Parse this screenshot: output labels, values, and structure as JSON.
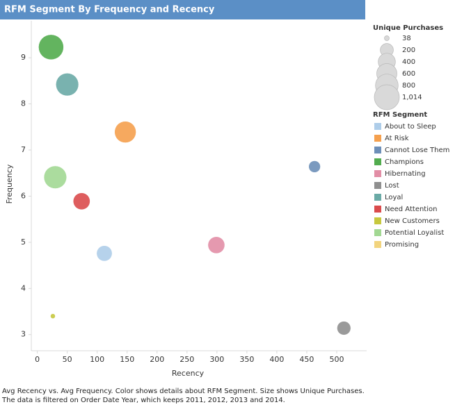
{
  "chart_data": {
    "type": "scatter",
    "title": "RFM Segment By Frequency and Recency",
    "x_label": "Recency",
    "y_label": "Frequency",
    "xlim": [
      -10,
      550
    ],
    "xticks": [
      0,
      50,
      100,
      150,
      200,
      250,
      300,
      350,
      400,
      450,
      500
    ],
    "ylim": [
      2.65,
      9.8
    ],
    "yticks": [
      3,
      4,
      5,
      6,
      7,
      8,
      9
    ],
    "size_legend_title": "Unique Purchases",
    "size_legend": [
      38,
      200,
      400,
      600,
      800,
      {
        "value": 1014,
        "label": "1,014"
      }
    ],
    "color_legend_title": "RFM Segment",
    "series": [
      {
        "name": "About to Sleep",
        "color": "#aecde9",
        "x": [
          112
        ],
        "y": [
          4.76
        ],
        "size": [
          310
        ]
      },
      {
        "name": "At Risk",
        "color": "#f5a04e",
        "x": [
          147
        ],
        "y": [
          7.39
        ],
        "size": [
          700
        ]
      },
      {
        "name": "Cannot Lose Them",
        "color": "#6d8fb8",
        "x": [
          463
        ],
        "y": [
          6.64
        ],
        "size": [
          150
        ]
      },
      {
        "name": "Champions",
        "color": "#52ac4e",
        "x": [
          23
        ],
        "y": [
          9.23
        ],
        "size": [
          1014
        ]
      },
      {
        "name": "Hibernating",
        "color": "#e28ea6",
        "x": [
          299
        ],
        "y": [
          4.94
        ],
        "size": [
          380
        ]
      },
      {
        "name": "Lost",
        "color": "#8f8f8f",
        "x": [
          512
        ],
        "y": [
          3.14
        ],
        "size": [
          225
        ]
      },
      {
        "name": "Loyal",
        "color": "#6aaaa6",
        "x": [
          50
        ],
        "y": [
          8.42
        ],
        "size": [
          800
        ]
      },
      {
        "name": "Need Attention",
        "color": "#da4b4c",
        "x": [
          74
        ],
        "y": [
          5.89
        ],
        "size": [
          380
        ]
      },
      {
        "name": "New Customers",
        "color": "#c7c83e",
        "x": [
          26
        ],
        "y": [
          3.4
        ],
        "size": [
          38
        ]
      },
      {
        "name": "Potential Loyalist",
        "color": "#a2d893",
        "x": [
          30
        ],
        "y": [
          6.41
        ],
        "size": [
          800
        ]
      },
      {
        "name": "Promising",
        "color": "#f2d47e",
        "x": [],
        "y": [],
        "size": []
      }
    ],
    "footnote": "Avg Recency vs. Avg Frequency.  Color shows details about RFM Segment.  Size shows Unique Purchases. The data is filtered on Order Date Year, which keeps 2011, 2012, 2013 and 2014."
  }
}
